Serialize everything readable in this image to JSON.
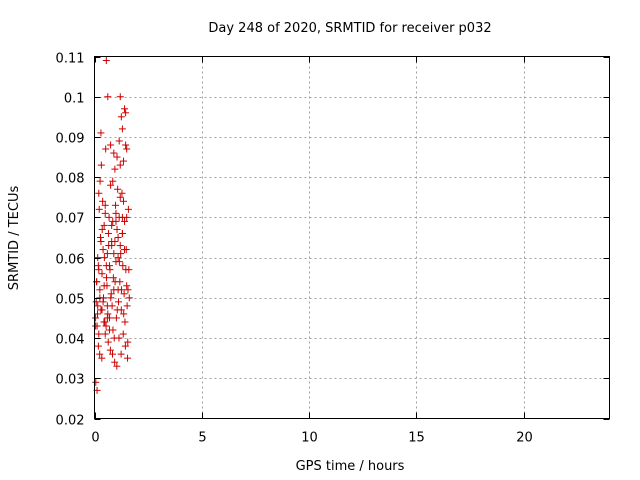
{
  "chart_data": {
    "type": "scatter",
    "title": "Day 248 of 2020, SRMTID for receiver p032",
    "xlabel": "GPS time / hours",
    "ylabel": "SRMTID / TECUs",
    "xlim": [
      0,
      24
    ],
    "ylim": [
      0.02,
      0.11
    ],
    "xticks": [
      0,
      5,
      10,
      15,
      20
    ],
    "xtick_labels": [
      "0",
      "5",
      "10",
      "15",
      "20"
    ],
    "yticks": [
      0.02,
      0.03,
      0.04,
      0.05,
      0.06,
      0.07,
      0.08,
      0.09,
      0.1,
      0.11
    ],
    "ytick_labels": [
      "0.02",
      "0.03",
      "0.04",
      "0.05",
      "0.06",
      "0.07",
      "0.08",
      "0.09",
      "0.1",
      "0.11"
    ],
    "grid": true,
    "marker": "+",
    "marker_color": "#cc0000",
    "series": [
      {
        "x": [
          0.05,
          0.08,
          0.1,
          0.12,
          0.15,
          0.18,
          0.2,
          0.22,
          0.25,
          0.28,
          0.3,
          0.32,
          0.35,
          0.38,
          0.4,
          0.42,
          0.45,
          0.48,
          0.5,
          0.52,
          0.55,
          0.58,
          0.6,
          0.62,
          0.65,
          0.68,
          0.7,
          0.72,
          0.75,
          0.78,
          0.8,
          0.82,
          0.85,
          0.88,
          0.9,
          0.92,
          0.95,
          0.98,
          1.0,
          1.02,
          1.05,
          1.08,
          1.1,
          1.12,
          1.15,
          1.18,
          1.2,
          1.22,
          1.25,
          1.28,
          1.3,
          1.32,
          1.35,
          1.38,
          1.4,
          1.42,
          1.45,
          1.48,
          1.5,
          1.52,
          1.55,
          1.58,
          1.6,
          1.62,
          0.1,
          0.14,
          0.2,
          0.26,
          0.3,
          0.36,
          0.4,
          0.46,
          0.5,
          0.56,
          0.6,
          0.66,
          0.7,
          0.76,
          0.8,
          0.86,
          0.9,
          0.96,
          1.0,
          1.06,
          1.1,
          1.16,
          1.2,
          1.26,
          1.3,
          1.36,
          1.4,
          1.46,
          1.5,
          1.56,
          0.06,
          0.12,
          0.18,
          0.24,
          0.34,
          0.44,
          0.54,
          0.64,
          0.74,
          0.84,
          0.94,
          1.04,
          1.14,
          1.24,
          1.34,
          1.44,
          1.54,
          0.2,
          0.3,
          0.55,
          0.62,
          0.75,
          0.85,
          1.05,
          1.15,
          1.2,
          1.25,
          1.3,
          1.4,
          1.45,
          1.5,
          0.95,
          0.45,
          0.35,
          0.25,
          0.15,
          0.05,
          0.6,
          0.9,
          1.35,
          1.1,
          0.7,
          0.5,
          0.8,
          1.0,
          1.2,
          1.3
        ],
        "y": [
          0.045,
          0.049,
          0.054,
          0.043,
          0.06,
          0.058,
          0.041,
          0.072,
          0.052,
          0.065,
          0.047,
          0.083,
          0.056,
          0.074,
          0.062,
          0.05,
          0.068,
          0.044,
          0.071,
          0.087,
          0.058,
          0.053,
          0.061,
          0.046,
          0.066,
          0.07,
          0.042,
          0.057,
          0.078,
          0.051,
          0.063,
          0.048,
          0.069,
          0.055,
          0.086,
          0.04,
          0.064,
          0.073,
          0.059,
          0.045,
          0.067,
          0.077,
          0.052,
          0.049,
          0.07,
          0.054,
          0.083,
          0.061,
          0.047,
          0.076,
          0.066,
          0.058,
          0.074,
          0.051,
          0.069,
          0.044,
          0.088,
          0.062,
          0.053,
          0.048,
          0.039,
          0.072,
          0.057,
          0.05,
          0.054,
          0.046,
          0.057,
          0.079,
          0.064,
          0.067,
          0.049,
          0.06,
          0.073,
          0.055,
          0.045,
          0.063,
          0.058,
          0.05,
          0.068,
          0.042,
          0.061,
          0.054,
          0.071,
          0.047,
          0.065,
          0.059,
          0.075,
          0.052,
          0.066,
          0.046,
          0.062,
          0.057,
          0.07,
          0.052,
          0.029,
          0.027,
          0.038,
          0.036,
          0.035,
          0.044,
          0.043,
          0.039,
          0.037,
          0.036,
          0.034,
          0.033,
          0.04,
          0.036,
          0.041,
          0.038,
          0.035,
          0.076,
          0.091,
          0.109,
          0.1,
          0.088,
          0.079,
          0.085,
          0.089,
          0.1,
          0.095,
          0.092,
          0.097,
          0.096,
          0.087,
          0.082,
          0.053,
          0.047,
          0.05,
          0.048,
          0.043,
          0.048,
          0.052,
          0.084,
          0.06,
          0.045,
          0.041,
          0.064,
          0.069,
          0.063,
          0.07
        ]
      }
    ]
  }
}
